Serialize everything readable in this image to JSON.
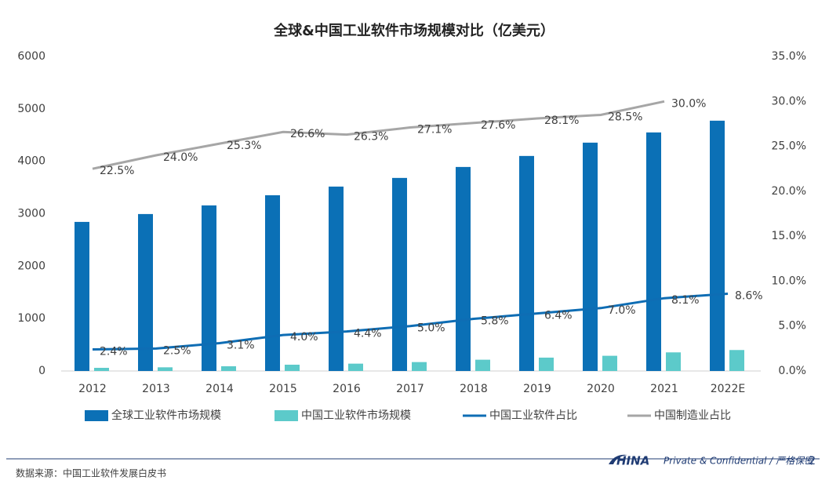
{
  "chart_data": {
    "type": "bar",
    "title": "全球&中国工业软件市场规模对比（亿美元）",
    "categories": [
      "2012",
      "2013",
      "2014",
      "2015",
      "2016",
      "2017",
      "2018",
      "2019",
      "2020",
      "2021",
      "2022E"
    ],
    "series": [
      {
        "name": "全球工业软件市场规模",
        "type": "bar",
        "color": "#0b70b6",
        "values": [
          2844,
          2994,
          3159,
          3353,
          3518,
          3683,
          3892,
          4102,
          4356,
          4551,
          4775
        ]
      },
      {
        "name": "中国工业软件市场规模",
        "type": "bar",
        "color": "#5ccaca",
        "values": [
          60,
          70,
          90,
          120,
          140,
          170,
          215,
          255,
          290,
          355,
          400
        ]
      },
      {
        "name": "中国工业软件占比",
        "type": "line",
        "axis": "y2",
        "color": "#0e6db4",
        "values": [
          2.4,
          2.5,
          3.1,
          4.0,
          4.4,
          5.0,
          5.8,
          6.4,
          7.0,
          8.1,
          8.6
        ],
        "value_labels": [
          "2.4%",
          "2.5%",
          "3.1%",
          "4.0%",
          "4.4%",
          "5.0%",
          "5.8%",
          "6.4%",
          "7.0%",
          "8.1%",
          "8.6%"
        ]
      },
      {
        "name": "中国制造业占比",
        "type": "line",
        "axis": "y2",
        "color": "#a6a6a6",
        "values": [
          22.5,
          24.0,
          25.3,
          26.6,
          26.3,
          27.1,
          27.6,
          28.1,
          28.5,
          30.0,
          null
        ],
        "value_labels": [
          "22.5%",
          "24.0%",
          "25.3%",
          "26.6%",
          "26.3%",
          "27.1%",
          "27.6%",
          "28.1%",
          "28.5%",
          "30.0%",
          null
        ]
      }
    ],
    "ylim": [
      0,
      6000
    ],
    "yticks": [
      0,
      1000,
      2000,
      3000,
      4000,
      5000,
      6000
    ],
    "y2lim": [
      0,
      35
    ],
    "y2ticks": [
      {
        "value": 0,
        "label": "0.0%"
      },
      {
        "value": 5,
        "label": "5.0%"
      },
      {
        "value": 10,
        "label": "10.0%"
      },
      {
        "value": 15,
        "label": "15.0%"
      },
      {
        "value": 20,
        "label": "20.0%"
      },
      {
        "value": 25,
        "label": "25.0%"
      },
      {
        "value": 30,
        "label": "30.0%"
      },
      {
        "value": 35,
        "label": "35.0%"
      }
    ],
    "legend": "bottom"
  },
  "footer": {
    "source": "数据来源：中国工业软件发展白皮书",
    "logo": "HINA",
    "confidential": "Private & Confidential / 严格保密",
    "page": "2"
  }
}
